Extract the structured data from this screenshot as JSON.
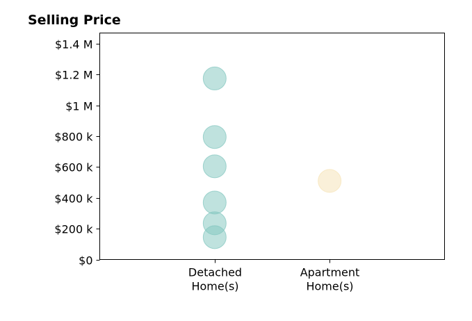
{
  "chart_data": {
    "type": "scatter",
    "title": "Selling Price",
    "xlabel": "",
    "ylabel": "",
    "categories": [
      [
        "Detached",
        "Home(s)"
      ],
      [
        "Apartment",
        "Home(s)"
      ]
    ],
    "ylim": [
      0,
      1470000
    ],
    "xlim": [
      -1,
      2
    ],
    "y_ticks": [
      0,
      200000,
      400000,
      600000,
      800000,
      1000000,
      1200000,
      1400000
    ],
    "y_tick_labels": [
      "$0",
      "$200 k",
      "$400 k",
      "$600 k",
      "$800 k",
      "$1 M",
      "$1.2 M",
      "$1.4 M"
    ],
    "grid": false,
    "series": [
      {
        "category_index": 0,
        "color": "#7fc5be",
        "values": [
          1175000,
          795000,
          605000,
          370000,
          235000,
          145000
        ]
      },
      {
        "category_index": 1,
        "color": "#f6e2b4",
        "values": [
          510000
        ]
      }
    ]
  }
}
